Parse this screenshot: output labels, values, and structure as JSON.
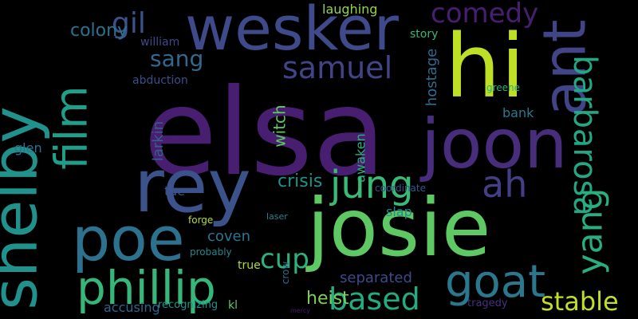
{
  "background": "#000000",
  "words": [
    {
      "text": "elsa",
      "color": "#481f70"
    },
    {
      "text": "josie",
      "color": "#5ec962"
    },
    {
      "text": "hi",
      "color": "#bddf26"
    },
    {
      "text": "shelby",
      "color": "#21918c"
    },
    {
      "text": "joon",
      "color": "#472d7b"
    },
    {
      "text": "rey",
      "color": "#3b528b"
    },
    {
      "text": "wesker",
      "color": "#3e4a89"
    },
    {
      "text": "poe",
      "color": "#2c728e"
    },
    {
      "text": "ant",
      "color": "#414487"
    },
    {
      "text": "phillip",
      "color": "#35b779"
    },
    {
      "text": "film",
      "color": "#1f9e89"
    },
    {
      "text": "goat",
      "color": "#2a788e"
    },
    {
      "text": "barbarosa",
      "color": "#22a884"
    },
    {
      "text": "yang",
      "color": "#28ae80"
    },
    {
      "text": "jung",
      "color": "#3aba76"
    },
    {
      "text": "ah",
      "color": "#433e85"
    },
    {
      "text": "based",
      "color": "#25ab82"
    },
    {
      "text": "stable",
      "color": "#c0df25"
    },
    {
      "text": "samuel",
      "color": "#414487"
    },
    {
      "text": "comedy",
      "color": "#481f70"
    },
    {
      "text": "gil",
      "color": "#3b528b"
    },
    {
      "text": "sang",
      "color": "#31688e"
    },
    {
      "text": "cup",
      "color": "#2db27d"
    },
    {
      "text": "colony",
      "color": "#2c728e"
    },
    {
      "text": "crisis",
      "color": "#20928c"
    },
    {
      "text": "heist",
      "color": "#7ad151"
    },
    {
      "text": "witch",
      "color": "#5ec962"
    },
    {
      "text": "hostage",
      "color": "#2f6c8e"
    },
    {
      "text": "separated",
      "color": "#3e4989"
    },
    {
      "text": "coven",
      "color": "#2a768e"
    },
    {
      "text": "awaken",
      "color": "#2ab07f"
    },
    {
      "text": "larkin",
      "color": "#35608d"
    },
    {
      "text": "glen",
      "color": "#2d718e"
    },
    {
      "text": "tae",
      "color": "#3b528b"
    },
    {
      "text": "slap",
      "color": "#23898e"
    },
    {
      "text": "bank",
      "color": "#2a788e"
    },
    {
      "text": "laughing",
      "color": "#8ed645"
    },
    {
      "text": "story",
      "color": "#37b878"
    },
    {
      "text": "william",
      "color": "#3f4889"
    },
    {
      "text": "abduction",
      "color": "#3e4c8a"
    },
    {
      "text": "accusing",
      "color": "#32648e"
    },
    {
      "text": "recognizing",
      "color": "#1f948c"
    },
    {
      "text": "tragedy",
      "color": "#46307e"
    },
    {
      "text": "true",
      "color": "#addc30"
    },
    {
      "text": "probably",
      "color": "#24868e"
    },
    {
      "text": "crow",
      "color": "#2e6e8e"
    },
    {
      "text": "forge",
      "color": "#b5de2b"
    },
    {
      "text": "greene",
      "color": "#29af7f"
    },
    {
      "text": "coordinate",
      "color": "#3b528b"
    },
    {
      "text": "laser",
      "color": "#26828e"
    },
    {
      "text": "kl",
      "color": "#5ec962"
    },
    {
      "text": "mercy",
      "color": "#48196b"
    }
  ]
}
